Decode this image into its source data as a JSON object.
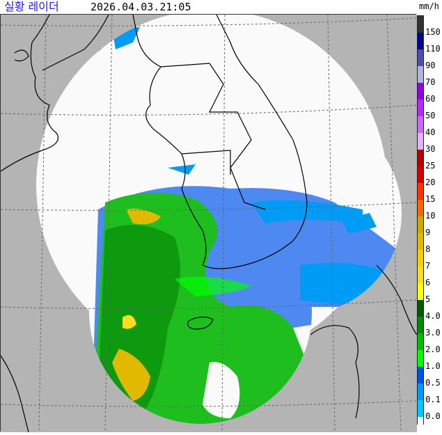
{
  "header": {
    "title": "실황 레이더",
    "timestamp": "2026.04.03.21:05"
  },
  "legend": {
    "unit": "mm/h",
    "labels": [
      "150",
      "110",
      "90",
      "70",
      "60",
      "50",
      "40",
      "30",
      "25",
      "20",
      "15",
      "10",
      "9",
      "8",
      "7",
      "6",
      "5",
      "4.0",
      "3.0",
      "2.0",
      "1.0",
      "0.5",
      "0.1",
      "0.0"
    ],
    "colors": [
      "#333333",
      "#000390",
      "#4c4eb1",
      "#b3b4de",
      "#9300e4",
      "#b329ff",
      "#c969ff",
      "#e0b4ff",
      "#b40000",
      "#d20000",
      "#ff3200",
      "#ff6600",
      "#ccaa00",
      "#e0b900",
      "#f9cd00",
      "#ffdc1f",
      "#ffff00",
      "#005a00",
      "#008c00",
      "#00be00",
      "#00ff00",
      "#0050f0",
      "#009bf5",
      "#00c8ff",
      "#fafafa"
    ]
  },
  "map": {
    "background_color": "#b4b4b4",
    "coverage_color": "#fafafa"
  }
}
